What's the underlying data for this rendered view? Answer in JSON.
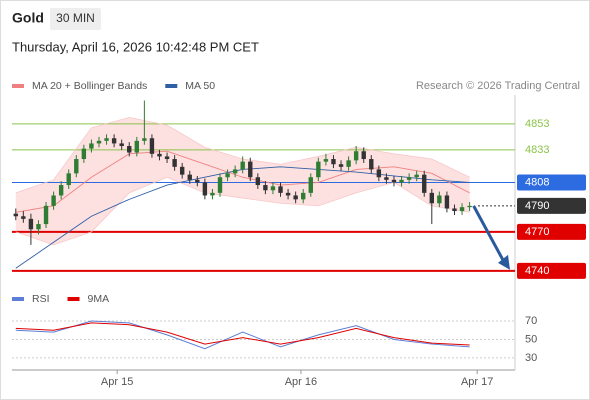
{
  "header": {
    "title": "Gold",
    "timeframe": "30 MIN",
    "timestamp": "Thursday, April 16, 2026 10:42:48 PM CET",
    "credit": "Research © 2026 Trading Central"
  },
  "chart_data": [
    {
      "type": "candlestick",
      "xlim": [
        -0.5,
        66
      ],
      "ylim": [
        4728,
        4876
      ],
      "xticks": [
        {
          "value": 13.4,
          "label": "Apr 15"
        },
        {
          "value": 37.7,
          "label": "Apr 16"
        },
        {
          "value": 61,
          "label": "Apr 17"
        }
      ],
      "up_color": "#2e7d32",
      "down_color": "#333333",
      "open": [
        4784,
        4782,
        4780,
        4772,
        4776,
        4790,
        4798,
        4806,
        4815,
        4826,
        4834,
        4838,
        4840,
        4842,
        4838,
        4836,
        4831,
        4840,
        4842,
        4830,
        4828,
        4826,
        4820,
        4814,
        4810,
        4808,
        4798,
        4800,
        4812,
        4815,
        4818,
        4824,
        4812,
        4806,
        4802,
        4805,
        4800,
        4798,
        4795,
        4800,
        4812,
        4824,
        4826,
        4822,
        4820,
        4825,
        4832,
        4826,
        4818,
        4812,
        4810,
        4808,
        4810,
        4812,
        4814,
        4800,
        4792,
        4798,
        4788,
        4786,
        4789
      ],
      "high": [
        4788,
        4786,
        4784,
        4779,
        4793,
        4801,
        4809,
        4818,
        4829,
        4837,
        4841,
        4843,
        4845,
        4845,
        4841,
        4839,
        4843,
        4871,
        4845,
        4833,
        4831,
        4829,
        4823,
        4817,
        4813,
        4811,
        4803,
        4815,
        4818,
        4821,
        4828,
        4827,
        4815,
        4809,
        4808,
        4808,
        4803,
        4801,
        4803,
        4815,
        4827,
        4830,
        4829,
        4825,
        4828,
        4836,
        4835,
        4829,
        4821,
        4815,
        4813,
        4813,
        4815,
        4817,
        4817,
        4803,
        4801,
        4801,
        4791,
        4792,
        4793
      ],
      "low": [
        4779,
        4777,
        4760,
        4768,
        4773,
        4787,
        4795,
        4803,
        4812,
        4823,
        4831,
        4835,
        4837,
        4835,
        4833,
        4828,
        4828,
        4837,
        4827,
        4825,
        4823,
        4817,
        4811,
        4807,
        4805,
        4795,
        4795,
        4797,
        4809,
        4812,
        4815,
        4809,
        4803,
        4799,
        4799,
        4797,
        4795,
        4792,
        4792,
        4797,
        4809,
        4821,
        4819,
        4817,
        4817,
        4822,
        4823,
        4815,
        4809,
        4807,
        4805,
        4805,
        4807,
        4809,
        4797,
        4776,
        4789,
        4785,
        4783,
        4783,
        4786
      ],
      "close": [
        4782,
        4780,
        4772,
        4776,
        4790,
        4798,
        4806,
        4815,
        4826,
        4834,
        4838,
        4840,
        4842,
        4838,
        4836,
        4831,
        4840,
        4842,
        4830,
        4828,
        4826,
        4820,
        4814,
        4810,
        4808,
        4798,
        4800,
        4812,
        4815,
        4818,
        4824,
        4812,
        4806,
        4802,
        4805,
        4800,
        4798,
        4795,
        4800,
        4812,
        4824,
        4826,
        4822,
        4820,
        4825,
        4832,
        4826,
        4818,
        4812,
        4810,
        4808,
        4810,
        4812,
        4814,
        4800,
        4792,
        4798,
        4788,
        4786,
        4789,
        4790
      ],
      "series": [
        {
          "name": "MA 20 + Bollinger Bands",
          "color": "#f08080",
          "band_color": "#fde0e0",
          "x": [
            0,
            5,
            10,
            15,
            20,
            25,
            30,
            35,
            40,
            45,
            50,
            55,
            60
          ],
          "values": [
            4785,
            4790,
            4812,
            4830,
            4832,
            4822,
            4812,
            4806,
            4808,
            4818,
            4820,
            4815,
            4800
          ],
          "upper": [
            4800,
            4810,
            4850,
            4858,
            4852,
            4835,
            4826,
            4822,
            4828,
            4835,
            4830,
            4826,
            4812
          ],
          "lower": [
            4770,
            4760,
            4770,
            4800,
            4812,
            4800,
            4796,
            4792,
            4790,
            4800,
            4808,
            4790,
            4785
          ]
        },
        {
          "name": "MA 50",
          "color": "#2f5fa5",
          "x": [
            0,
            5,
            10,
            15,
            20,
            25,
            30,
            35,
            40,
            45,
            50,
            55,
            60
          ],
          "values": [
            4742,
            4762,
            4782,
            4795,
            4806,
            4812,
            4818,
            4820,
            4818,
            4816,
            4813,
            4810,
            4808
          ]
        }
      ],
      "levels": [
        {
          "value": 4853,
          "color": "#8bc34a",
          "style": "text"
        },
        {
          "value": 4833,
          "color": "#8bc34a",
          "style": "text"
        },
        {
          "value": 4808,
          "color": "#2d6be0",
          "style": "box"
        },
        {
          "value": 4790,
          "color": "#333333",
          "style": "dotted"
        },
        {
          "value": 4770,
          "color": "#e00000",
          "style": "box"
        },
        {
          "value": 4740,
          "color": "#e00000",
          "style": "box"
        }
      ]
    },
    {
      "type": "line",
      "xlim": [
        -0.5,
        66
      ],
      "ylim": [
        19,
        82
      ],
      "yticks": [
        30,
        50,
        70
      ],
      "series": [
        {
          "name": "RSI",
          "color": "#5b7fd6",
          "x": [
            0,
            5,
            10,
            15,
            20,
            25,
            30,
            35,
            40,
            45,
            50,
            55,
            60
          ],
          "values": [
            60,
            58,
            70,
            68,
            55,
            40,
            58,
            42,
            55,
            65,
            50,
            45,
            42
          ]
        },
        {
          "name": "9MA",
          "color": "#e00000",
          "x": [
            0,
            5,
            10,
            15,
            20,
            25,
            30,
            35,
            40,
            45,
            50,
            55,
            60
          ],
          "values": [
            62,
            60,
            68,
            66,
            58,
            45,
            52,
            45,
            52,
            62,
            52,
            46,
            44
          ]
        }
      ]
    }
  ]
}
